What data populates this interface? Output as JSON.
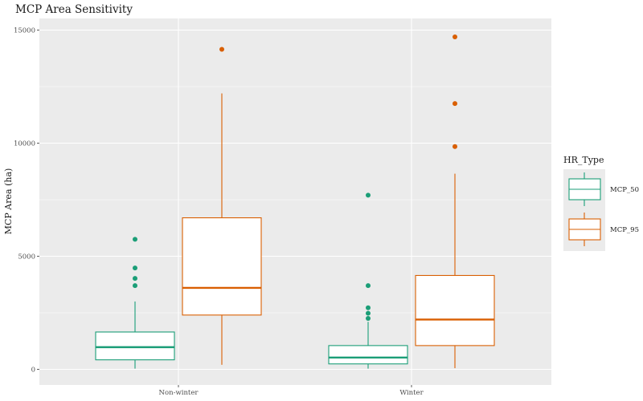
{
  "chart_data": {
    "type": "boxplot",
    "title": "MCP Area Sensitivity",
    "xlabel": "",
    "ylabel": "MCP Area (ha)",
    "ylim": [
      -700,
      15500
    ],
    "yticks": [
      0,
      5000,
      10000,
      15000
    ],
    "categories": [
      "Non-winter",
      "Winter"
    ],
    "grid": true,
    "legend": {
      "title": "HR_Type",
      "placement": "right"
    },
    "series": [
      {
        "name": "MCP_50",
        "color": "#1b9e77",
        "boxes": [
          {
            "category": "Non-winter",
            "min": 30,
            "q1": 420,
            "median": 980,
            "q3": 1650,
            "max": 3000,
            "outliers": [
              3700,
              4020,
              4480,
              5750
            ]
          },
          {
            "category": "Winter",
            "min": 30,
            "q1": 240,
            "median": 520,
            "q3": 1050,
            "max": 2100,
            "outliers": [
              2250,
              2480,
              2720,
              3700,
              7700
            ]
          }
        ]
      },
      {
        "name": "MCP_95",
        "color": "#d95f02",
        "boxes": [
          {
            "category": "Non-winter",
            "min": 200,
            "q1": 2400,
            "median": 3600,
            "q3": 6700,
            "max": 12200,
            "outliers": [
              14150
            ]
          },
          {
            "category": "Winter",
            "min": 50,
            "q1": 1050,
            "median": 2200,
            "q3": 4150,
            "max": 8650,
            "outliers": [
              9850,
              11750,
              14700
            ]
          }
        ]
      }
    ]
  }
}
